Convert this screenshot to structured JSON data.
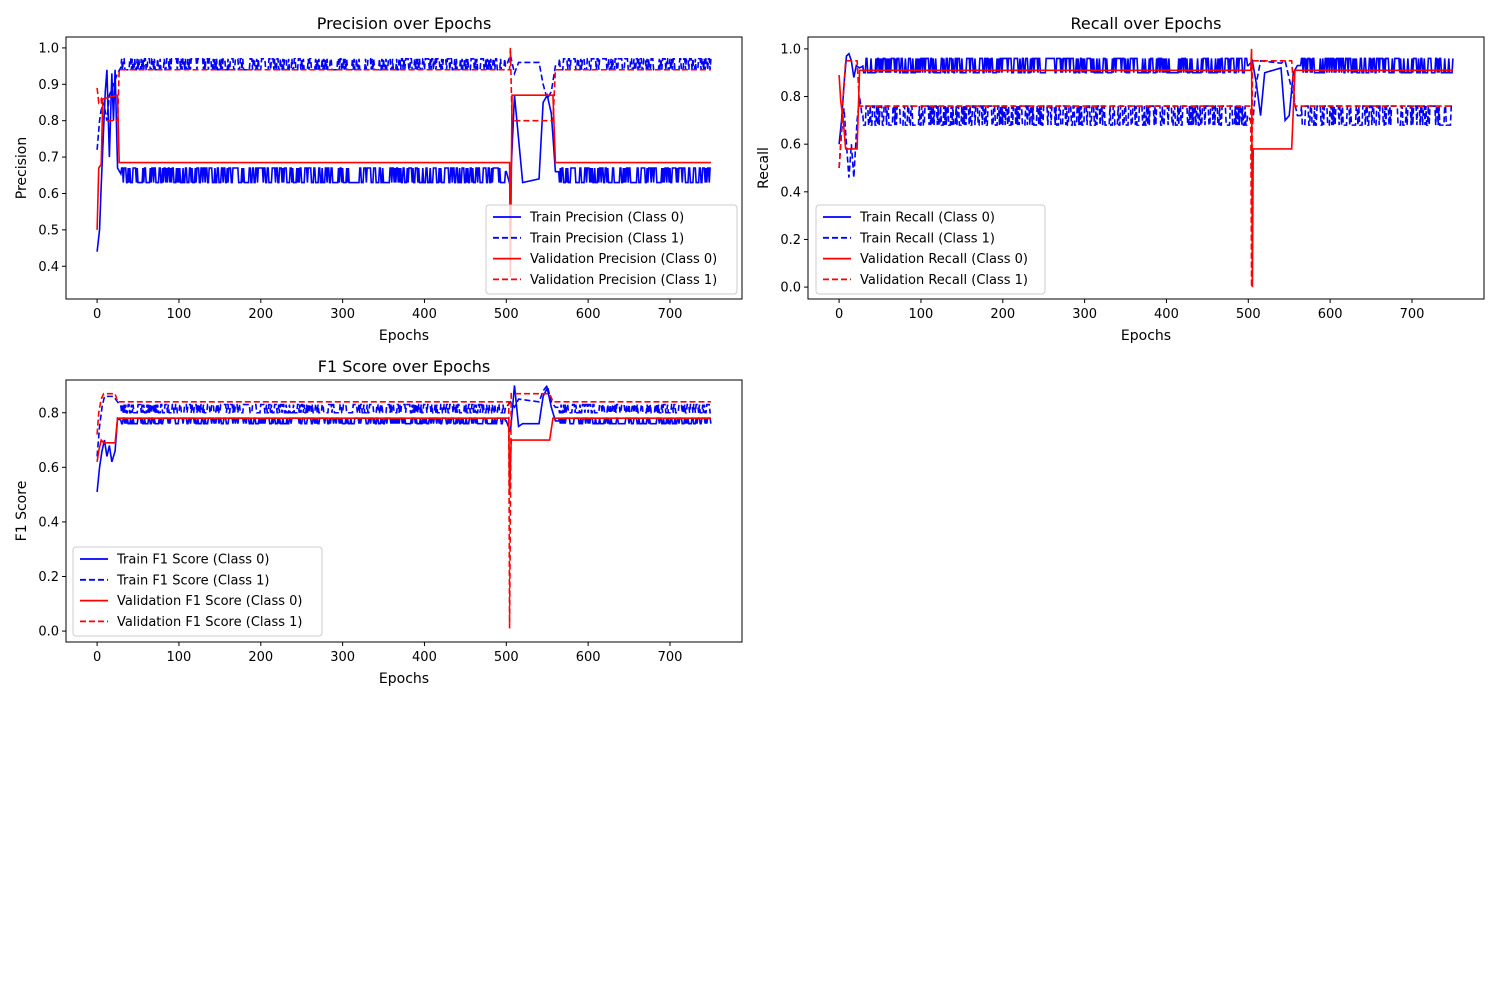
{
  "figure": {
    "panels": [
      {
        "id": "precision",
        "title": "Precision over Epochs",
        "xlabel": "Epochs",
        "ylabel": "Precision"
      },
      {
        "id": "recall",
        "title": "Recall over Epochs",
        "xlabel": "Epochs",
        "ylabel": "Recall"
      },
      {
        "id": "f1",
        "title": "F1 Score over Epochs",
        "xlabel": "Epochs",
        "ylabel": "F1 Score"
      }
    ]
  },
  "chart_data": [
    {
      "type": "line",
      "title": "Precision over Epochs",
      "xlabel": "Epochs",
      "ylabel": "Precision",
      "xlim": [
        -38,
        788
      ],
      "ylim": [
        0.31,
        1.03
      ],
      "xticks": [
        0,
        100,
        200,
        300,
        400,
        500,
        600,
        700
      ],
      "yticks": [
        0.4,
        0.5,
        0.6,
        0.7,
        0.8,
        0.9,
        1.0
      ],
      "ytick_labels": [
        "0.4",
        "0.5",
        "0.6",
        "0.7",
        "0.8",
        "0.9",
        "1.0"
      ],
      "legend_position": "lower-right",
      "series": [
        {
          "name": "Train Precision (Class 0)",
          "color": "#0000ff",
          "dash": "solid",
          "noise": [
            0.63,
            0.67
          ],
          "points": [
            [
              0,
              0.44
            ],
            [
              3,
              0.5
            ],
            [
              5,
              0.62
            ],
            [
              8,
              0.78
            ],
            [
              10,
              0.88
            ],
            [
              12,
              0.94
            ],
            [
              15,
              0.7
            ],
            [
              18,
              0.93
            ],
            [
              20,
              0.8
            ],
            [
              22,
              0.94
            ],
            [
              25,
              0.67
            ],
            [
              30,
              0.65
            ],
            [
              460,
              0.65
            ],
            [
              500,
              0.66
            ],
            [
              505,
              0.62
            ],
            [
              510,
              0.87
            ],
            [
              515,
              0.75
            ],
            [
              520,
              0.63
            ],
            [
              540,
              0.64
            ],
            [
              545,
              0.85
            ],
            [
              550,
              0.87
            ],
            [
              555,
              0.82
            ],
            [
              560,
              0.66
            ],
            [
              750,
              0.65
            ]
          ]
        },
        {
          "name": "Train Precision (Class 1)",
          "color": "#0000ff",
          "dash": "dashed",
          "noise": [
            0.94,
            0.97
          ],
          "points": [
            [
              0,
              0.72
            ],
            [
              3,
              0.8
            ],
            [
              5,
              0.83
            ],
            [
              8,
              0.85
            ],
            [
              12,
              0.8
            ],
            [
              15,
              0.87
            ],
            [
              20,
              0.9
            ],
            [
              25,
              0.93
            ],
            [
              30,
              0.95
            ],
            [
              500,
              0.95
            ],
            [
              505,
              0.98
            ],
            [
              510,
              0.93
            ],
            [
              515,
              0.96
            ],
            [
              540,
              0.96
            ],
            [
              545,
              0.9
            ],
            [
              550,
              0.86
            ],
            [
              555,
              0.88
            ],
            [
              560,
              0.95
            ],
            [
              750,
              0.95
            ]
          ]
        },
        {
          "name": "Validation Precision (Class 0)",
          "color": "#ff0000",
          "dash": "solid",
          "points": [
            [
              0,
              0.5
            ],
            [
              2,
              0.67
            ],
            [
              5,
              0.68
            ],
            [
              7,
              0.86
            ],
            [
              25,
              0.87
            ],
            [
              27,
              0.685
            ],
            [
              504,
              0.685
            ],
            [
              505,
              0.37
            ],
            [
              507,
              0.87
            ],
            [
              557,
              0.87
            ],
            [
              560,
              0.685
            ],
            [
              750,
              0.685
            ]
          ]
        },
        {
          "name": "Validation Precision (Class 1)",
          "color": "#ff0000",
          "dash": "dashed",
          "points": [
            [
              0,
              0.89
            ],
            [
              2,
              0.85
            ],
            [
              5,
              0.86
            ],
            [
              7,
              0.8
            ],
            [
              25,
              0.8
            ],
            [
              27,
              0.94
            ],
            [
              504,
              0.94
            ],
            [
              505,
              1.0
            ],
            [
              507,
              0.8
            ],
            [
              557,
              0.8
            ],
            [
              560,
              0.94
            ],
            [
              750,
              0.94
            ]
          ]
        }
      ]
    },
    {
      "type": "line",
      "title": "Recall over Epochs",
      "xlabel": "Epochs",
      "ylabel": "Recall",
      "xlim": [
        -38,
        788
      ],
      "ylim": [
        -0.05,
        1.05
      ],
      "xticks": [
        0,
        100,
        200,
        300,
        400,
        500,
        600,
        700
      ],
      "yticks": [
        0.0,
        0.2,
        0.4,
        0.6,
        0.8,
        1.0
      ],
      "ytick_labels": [
        "0.0",
        "0.2",
        "0.4",
        "0.6",
        "0.8",
        "1.0"
      ],
      "legend_position": "lower-left",
      "series": [
        {
          "name": "Train Recall (Class 0)",
          "color": "#0000ff",
          "dash": "solid",
          "noise": [
            0.9,
            0.96
          ],
          "points": [
            [
              0,
              0.6
            ],
            [
              3,
              0.7
            ],
            [
              6,
              0.85
            ],
            [
              9,
              0.97
            ],
            [
              12,
              0.98
            ],
            [
              15,
              0.95
            ],
            [
              18,
              0.88
            ],
            [
              21,
              0.93
            ],
            [
              25,
              0.92
            ],
            [
              30,
              0.93
            ],
            [
              500,
              0.93
            ],
            [
              505,
              0.95
            ],
            [
              510,
              0.85
            ],
            [
              515,
              0.72
            ],
            [
              520,
              0.9
            ],
            [
              540,
              0.92
            ],
            [
              545,
              0.7
            ],
            [
              550,
              0.72
            ],
            [
              555,
              0.9
            ],
            [
              560,
              0.93
            ],
            [
              750,
              0.93
            ]
          ]
        },
        {
          "name": "Train Recall (Class 1)",
          "color": "#0000ff",
          "dash": "dashed",
          "noise": [
            0.68,
            0.76
          ],
          "points": [
            [
              0,
              0.5
            ],
            [
              3,
              0.65
            ],
            [
              6,
              0.75
            ],
            [
              9,
              0.6
            ],
            [
              12,
              0.46
            ],
            [
              15,
              0.6
            ],
            [
              18,
              0.46
            ],
            [
              22,
              0.7
            ],
            [
              25,
              0.8
            ],
            [
              28,
              0.72
            ],
            [
              30,
              0.72
            ],
            [
              500,
              0.72
            ],
            [
              505,
              0.68
            ],
            [
              510,
              0.86
            ],
            [
              515,
              0.95
            ],
            [
              540,
              0.94
            ],
            [
              545,
              0.95
            ],
            [
              555,
              0.8
            ],
            [
              560,
              0.72
            ],
            [
              750,
              0.72
            ]
          ]
        },
        {
          "name": "Validation Recall (Class 0)",
          "color": "#ff0000",
          "dash": "solid",
          "points": [
            [
              0,
              0.89
            ],
            [
              2,
              0.78
            ],
            [
              5,
              0.7
            ],
            [
              8,
              0.58
            ],
            [
              22,
              0.58
            ],
            [
              25,
              0.91
            ],
            [
              503,
              0.91
            ],
            [
              504,
              1.0
            ],
            [
              505,
              0.0
            ],
            [
              506,
              0.58
            ],
            [
              553,
              0.58
            ],
            [
              557,
              0.91
            ],
            [
              750,
              0.91
            ]
          ]
        },
        {
          "name": "Validation Recall (Class 1)",
          "color": "#ff0000",
          "dash": "dashed",
          "points": [
            [
              0,
              0.5
            ],
            [
              2,
              0.6
            ],
            [
              5,
              0.8
            ],
            [
              8,
              0.95
            ],
            [
              22,
              0.95
            ],
            [
              25,
              0.76
            ],
            [
              503,
              0.76
            ],
            [
              504,
              0.0
            ],
            [
              505,
              0.95
            ],
            [
              553,
              0.95
            ],
            [
              557,
              0.76
            ],
            [
              750,
              0.76
            ]
          ]
        }
      ]
    },
    {
      "type": "line",
      "title": "F1 Score over Epochs",
      "xlabel": "Epochs",
      "ylabel": "F1 Score",
      "xlim": [
        -38,
        788
      ],
      "ylim": [
        -0.04,
        0.92
      ],
      "xticks": [
        0,
        100,
        200,
        300,
        400,
        500,
        600,
        700
      ],
      "yticks": [
        0.0,
        0.2,
        0.4,
        0.6,
        0.8
      ],
      "ytick_labels": [
        "0.0",
        "0.2",
        "0.4",
        "0.6",
        "0.8"
      ],
      "legend_position": "lower-left",
      "series": [
        {
          "name": "Train F1 Score (Class 0)",
          "color": "#0000ff",
          "dash": "solid",
          "noise": [
            0.76,
            0.78
          ],
          "points": [
            [
              0,
              0.51
            ],
            [
              3,
              0.6
            ],
            [
              6,
              0.66
            ],
            [
              9,
              0.7
            ],
            [
              12,
              0.64
            ],
            [
              15,
              0.68
            ],
            [
              18,
              0.62
            ],
            [
              22,
              0.66
            ],
            [
              25,
              0.78
            ],
            [
              30,
              0.77
            ],
            [
              500,
              0.77
            ],
            [
              505,
              0.73
            ],
            [
              510,
              0.9
            ],
            [
              515,
              0.75
            ],
            [
              520,
              0.76
            ],
            [
              540,
              0.76
            ],
            [
              545,
              0.86
            ],
            [
              550,
              0.89
            ],
            [
              555,
              0.82
            ],
            [
              560,
              0.77
            ],
            [
              750,
              0.77
            ]
          ]
        },
        {
          "name": "Train F1 Score (Class 1)",
          "color": "#0000ff",
          "dash": "dashed",
          "noise": [
            0.8,
            0.83
          ],
          "points": [
            [
              0,
              0.64
            ],
            [
              3,
              0.75
            ],
            [
              6,
              0.82
            ],
            [
              9,
              0.86
            ],
            [
              15,
              0.86
            ],
            [
              20,
              0.86
            ],
            [
              25,
              0.84
            ],
            [
              30,
              0.82
            ],
            [
              500,
              0.82
            ],
            [
              505,
              0.84
            ],
            [
              510,
              0.82
            ],
            [
              515,
              0.85
            ],
            [
              540,
              0.84
            ],
            [
              545,
              0.88
            ],
            [
              550,
              0.9
            ],
            [
              555,
              0.84
            ],
            [
              560,
              0.82
            ],
            [
              750,
              0.82
            ]
          ]
        },
        {
          "name": "Validation F1 Score (Class 0)",
          "color": "#ff0000",
          "dash": "solid",
          "points": [
            [
              0,
              0.62
            ],
            [
              2,
              0.66
            ],
            [
              5,
              0.7
            ],
            [
              8,
              0.69
            ],
            [
              22,
              0.69
            ],
            [
              25,
              0.78
            ],
            [
              503,
              0.78
            ],
            [
              504,
              0.5
            ],
            [
              506,
              0.7
            ],
            [
              553,
              0.7
            ],
            [
              557,
              0.78
            ],
            [
              750,
              0.78
            ]
          ]
        },
        {
          "name": "Validation F1 Score (Class 1)",
          "color": "#ff0000",
          "dash": "dashed",
          "points": [
            [
              0,
              0.72
            ],
            [
              2,
              0.8
            ],
            [
              5,
              0.85
            ],
            [
              8,
              0.87
            ],
            [
              22,
              0.87
            ],
            [
              25,
              0.84
            ],
            [
              503,
              0.84
            ],
            [
              504,
              0.01
            ],
            [
              506,
              0.87
            ],
            [
              553,
              0.87
            ],
            [
              557,
              0.84
            ],
            [
              750,
              0.84
            ]
          ]
        }
      ]
    }
  ]
}
